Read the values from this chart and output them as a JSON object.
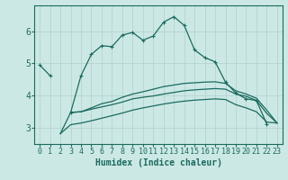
{
  "bg_color": "#cce8e5",
  "grid_color": "#aed0cc",
  "line_color": "#1a6b5e",
  "xlabel": "Humidex (Indice chaleur)",
  "xlabel_fontsize": 7,
  "tick_fontsize": 6,
  "yticks": [
    3,
    4,
    5,
    6
  ],
  "xlim": [
    -0.5,
    23.5
  ],
  "ylim": [
    2.5,
    6.8
  ],
  "x_values": [
    0,
    1,
    2,
    3,
    4,
    5,
    6,
    7,
    8,
    9,
    10,
    11,
    12,
    13,
    14,
    15,
    16,
    17,
    18,
    19,
    20,
    21,
    22,
    23
  ],
  "curve_main": [
    4.95,
    4.62,
    null,
    3.48,
    4.62,
    5.28,
    5.55,
    5.52,
    5.88,
    5.96,
    5.72,
    5.85,
    6.28,
    6.45,
    6.18,
    5.42,
    5.18,
    5.05,
    4.42,
    4.08,
    3.9,
    3.85,
    3.12,
    null
  ],
  "curve2": [
    null,
    null,
    null,
    3.48,
    3.5,
    3.62,
    3.75,
    3.82,
    3.95,
    4.05,
    4.12,
    4.2,
    4.28,
    4.33,
    4.38,
    4.4,
    4.42,
    4.43,
    4.38,
    4.15,
    4.05,
    3.92,
    3.55,
    3.15
  ],
  "curve_low1": [
    null,
    null,
    2.82,
    3.48,
    3.5,
    3.58,
    3.65,
    3.72,
    3.8,
    3.9,
    3.95,
    3.99,
    4.05,
    4.1,
    4.15,
    4.18,
    4.2,
    4.22,
    4.2,
    4.05,
    3.98,
    3.85,
    3.45,
    3.15
  ],
  "curve_low2": [
    null,
    null,
    2.82,
    3.1,
    3.15,
    3.22,
    3.3,
    3.38,
    3.46,
    3.55,
    3.62,
    3.68,
    3.74,
    3.79,
    3.83,
    3.86,
    3.88,
    3.9,
    3.88,
    3.72,
    3.62,
    3.5,
    3.18,
    3.15
  ]
}
